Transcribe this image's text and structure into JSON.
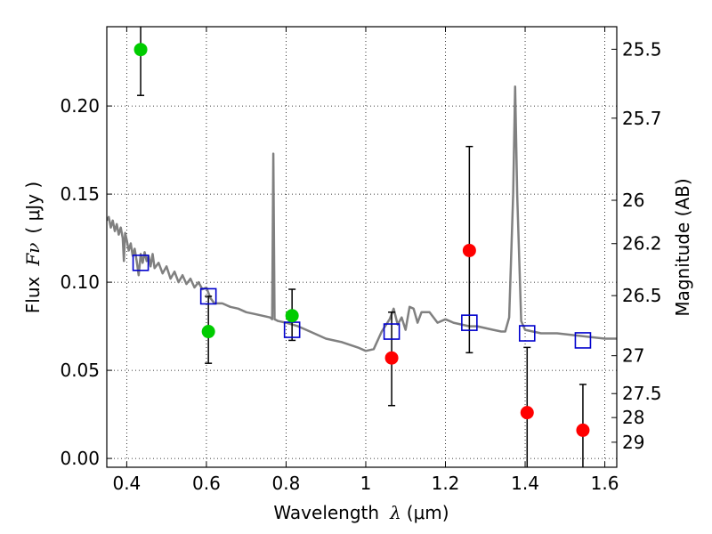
{
  "chart_data": {
    "type": "scatter",
    "xlabel_text": "Wavelength",
    "xlabel_symbol": "λ",
    "xlabel_unit": "(μm)",
    "ylabel_text": "Flux",
    "ylabel_symbol": "Fν",
    "ylabel_unit": "( μJy )",
    "y2label": "Magnitude (AB)",
    "xlim": [
      0.35,
      1.63
    ],
    "ylim": [
      -0.005,
      0.245
    ],
    "grid": true,
    "x_ticks": [
      {
        "value": 0.4,
        "label": "0.4"
      },
      {
        "value": 0.6,
        "label": "0.6"
      },
      {
        "value": 0.8,
        "label": "0.8"
      },
      {
        "value": 1.0,
        "label": "1"
      },
      {
        "value": 1.2,
        "label": "1.2"
      },
      {
        "value": 1.4,
        "label": "1.4"
      },
      {
        "value": 1.6,
        "label": "1.6"
      }
    ],
    "y_ticks": [
      {
        "value": 0.0,
        "label": "0.00"
      },
      {
        "value": 0.05,
        "label": "0.05"
      },
      {
        "value": 0.1,
        "label": "0.10"
      },
      {
        "value": 0.15,
        "label": "0.15"
      },
      {
        "value": 0.2,
        "label": "0.20"
      }
    ],
    "y2_ticks": [
      {
        "label": "25.5",
        "flux": 0.2322
      },
      {
        "label": "25.7",
        "flux": 0.1931
      },
      {
        "label": "26",
        "flux": 0.1465
      },
      {
        "label": "26.2",
        "flux": 0.1219
      },
      {
        "label": "26.5",
        "flux": 0.0924
      },
      {
        "label": "27",
        "flux": 0.0583
      },
      {
        "label": "27.5",
        "flux": 0.0368
      },
      {
        "label": "28",
        "flux": 0.0232
      },
      {
        "label": "29",
        "flux": 0.0092
      }
    ],
    "model_spectrum": {
      "color": "#808080",
      "points": [
        [
          0.35,
          0.135
        ],
        [
          0.355,
          0.137
        ],
        [
          0.36,
          0.131
        ],
        [
          0.365,
          0.135
        ],
        [
          0.37,
          0.129
        ],
        [
          0.375,
          0.133
        ],
        [
          0.38,
          0.127
        ],
        [
          0.385,
          0.131
        ],
        [
          0.39,
          0.125
        ],
        [
          0.393,
          0.112
        ],
        [
          0.396,
          0.128
        ],
        [
          0.4,
          0.124
        ],
        [
          0.405,
          0.118
        ],
        [
          0.41,
          0.122
        ],
        [
          0.415,
          0.115
        ],
        [
          0.42,
          0.119
        ],
        [
          0.425,
          0.112
        ],
        [
          0.43,
          0.104
        ],
        [
          0.435,
          0.116
        ],
        [
          0.44,
          0.111
        ],
        [
          0.445,
          0.117
        ],
        [
          0.45,
          0.112
        ],
        [
          0.455,
          0.115
        ],
        [
          0.46,
          0.109
        ],
        [
          0.465,
          0.116
        ],
        [
          0.47,
          0.108
        ],
        [
          0.48,
          0.111
        ],
        [
          0.49,
          0.105
        ],
        [
          0.5,
          0.109
        ],
        [
          0.51,
          0.102
        ],
        [
          0.52,
          0.106
        ],
        [
          0.53,
          0.1
        ],
        [
          0.54,
          0.104
        ],
        [
          0.55,
          0.099
        ],
        [
          0.56,
          0.102
        ],
        [
          0.57,
          0.097
        ],
        [
          0.58,
          0.1
        ],
        [
          0.59,
          0.096
        ],
        [
          0.6,
          0.097
        ],
        [
          0.61,
          0.091
        ],
        [
          0.62,
          0.088
        ],
        [
          0.64,
          0.088
        ],
        [
          0.66,
          0.086
        ],
        [
          0.68,
          0.085
        ],
        [
          0.7,
          0.083
        ],
        [
          0.72,
          0.082
        ],
        [
          0.74,
          0.081
        ],
        [
          0.76,
          0.08
        ],
        [
          0.765,
          0.079
        ],
        [
          0.768,
          0.173
        ],
        [
          0.771,
          0.079
        ],
        [
          0.78,
          0.078
        ],
        [
          0.8,
          0.077
        ],
        [
          0.83,
          0.075
        ],
        [
          0.86,
          0.072
        ],
        [
          0.9,
          0.068
        ],
        [
          0.94,
          0.066
        ],
        [
          0.98,
          0.063
        ],
        [
          1.0,
          0.061
        ],
        [
          1.02,
          0.062
        ],
        [
          1.04,
          0.072
        ],
        [
          1.06,
          0.079
        ],
        [
          1.07,
          0.085
        ],
        [
          1.08,
          0.076
        ],
        [
          1.09,
          0.08
        ],
        [
          1.1,
          0.073
        ],
        [
          1.11,
          0.086
        ],
        [
          1.12,
          0.085
        ],
        [
          1.13,
          0.077
        ],
        [
          1.14,
          0.083
        ],
        [
          1.16,
          0.083
        ],
        [
          1.18,
          0.077
        ],
        [
          1.2,
          0.079
        ],
        [
          1.22,
          0.077
        ],
        [
          1.24,
          0.076
        ],
        [
          1.26,
          0.075
        ],
        [
          1.28,
          0.075
        ],
        [
          1.3,
          0.074
        ],
        [
          1.32,
          0.073
        ],
        [
          1.34,
          0.072
        ],
        [
          1.35,
          0.072
        ],
        [
          1.36,
          0.08
        ],
        [
          1.37,
          0.15
        ],
        [
          1.375,
          0.211
        ],
        [
          1.38,
          0.15
        ],
        [
          1.39,
          0.078
        ],
        [
          1.4,
          0.073
        ],
        [
          1.44,
          0.071
        ],
        [
          1.48,
          0.071
        ],
        [
          1.52,
          0.07
        ],
        [
          1.56,
          0.069
        ],
        [
          1.6,
          0.068
        ],
        [
          1.63,
          0.068
        ]
      ]
    },
    "series": [
      {
        "marker": "open-square",
        "color": "#0000cc",
        "points": [
          {
            "x": 0.435,
            "y": 0.111
          },
          {
            "x": 0.605,
            "y": 0.092
          },
          {
            "x": 0.815,
            "y": 0.073
          },
          {
            "x": 1.065,
            "y": 0.072
          },
          {
            "x": 1.26,
            "y": 0.077
          },
          {
            "x": 1.405,
            "y": 0.071
          },
          {
            "x": 1.545,
            "y": 0.067
          }
        ]
      },
      {
        "marker": "filled-circle",
        "color": "#00cc00",
        "points": [
          {
            "x": 0.435,
            "y": 0.232,
            "err_low": 0.206,
            "err_high": 0.25
          },
          {
            "x": 0.605,
            "y": 0.072,
            "err_low": 0.054,
            "err_high": 0.092
          },
          {
            "x": 0.815,
            "y": 0.081,
            "err_low": 0.067,
            "err_high": 0.096
          }
        ]
      },
      {
        "marker": "filled-circle",
        "color": "#ff0000",
        "points": [
          {
            "x": 1.065,
            "y": 0.057,
            "err_low": 0.03,
            "err_high": 0.083
          },
          {
            "x": 1.26,
            "y": 0.118,
            "err_low": 0.06,
            "err_high": 0.177
          },
          {
            "x": 1.405,
            "y": 0.026,
            "err_low": -0.01,
            "err_high": 0.063
          },
          {
            "x": 1.545,
            "y": 0.016,
            "err_low": -0.01,
            "err_high": 0.042
          }
        ]
      }
    ]
  }
}
